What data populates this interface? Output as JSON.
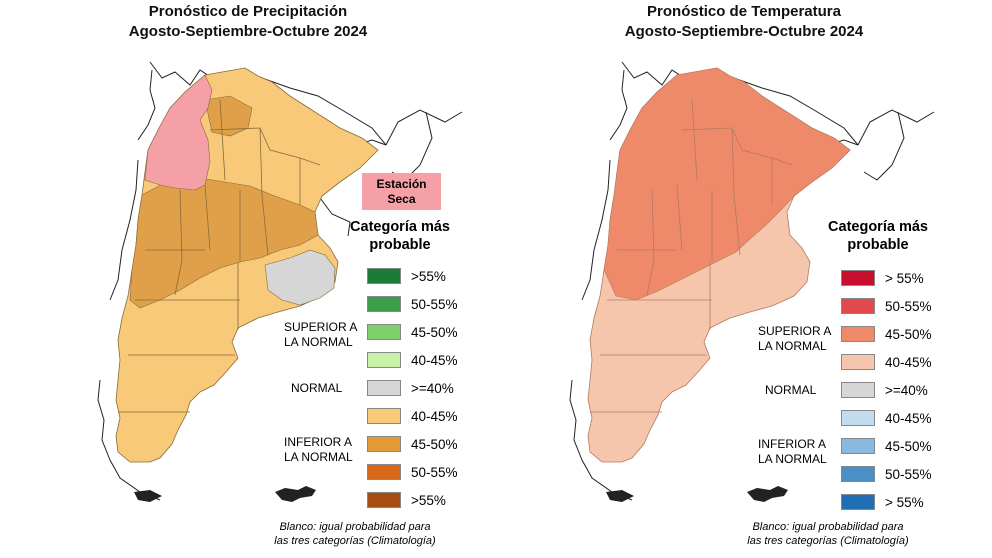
{
  "left_panel": {
    "title_line1": "Pronóstico de Precipitación",
    "title_line2": "Agosto-Septiembre-Octubre 2024",
    "dry_station_line1": "Estación",
    "dry_station_line2": "Seca",
    "category_title_line1": "Categoría más",
    "category_title_line2": "probable",
    "legend": [
      {
        "label": ">55%",
        "color": "#1b7a35"
      },
      {
        "label": "50-55%",
        "color": "#3d9e4a"
      },
      {
        "label": "45-50%",
        "color": "#7fd06a"
      },
      {
        "label": "40-45%",
        "color": "#c9f0a8"
      },
      {
        "label": ">=40%",
        "color": "#d6d6d6"
      },
      {
        "label": "40-45%",
        "color": "#f7c978"
      },
      {
        "label": "45-50%",
        "color": "#e39a36"
      },
      {
        "label": "50-55%",
        "color": "#d8661b"
      },
      {
        "label": ">55%",
        "color": "#a84e14"
      }
    ],
    "group_superior_line1": "SUPERIOR A",
    "group_superior_line2": "LA NORMAL",
    "group_normal": "NORMAL",
    "group_inferior_line1": "INFERIOR A",
    "group_inferior_line2": "LA NORMAL",
    "footnote_line1": "Blanco: igual probabilidad para",
    "footnote_line2": "las tres categorías (Climatología)",
    "map_colors": {
      "dry": "#f4a0a6",
      "light": "#f7c978",
      "medium": "#e0a04a",
      "normal": "#d6d6d6"
    }
  },
  "right_panel": {
    "title_line1": "Pronóstico de Temperatura",
    "title_line2": "Agosto-Septiembre-Octubre 2024",
    "category_title_line1": "Categoría más",
    "category_title_line2": "probable",
    "legend": [
      {
        "label": "> 55%",
        "color": "#c8102e"
      },
      {
        "label": "50-55%",
        "color": "#e04a4a"
      },
      {
        "label": "45-50%",
        "color": "#ee8a6a"
      },
      {
        "label": "40-45%",
        "color": "#f5c6ac"
      },
      {
        "label": ">=40%",
        "color": "#d6d6d6"
      },
      {
        "label": "40-45%",
        "color": "#c2dcee"
      },
      {
        "label": "45-50%",
        "color": "#8ab9df"
      },
      {
        "label": "50-55%",
        "color": "#4b8fc9"
      },
      {
        "label": "> 55%",
        "color": "#1f6fb4"
      }
    ],
    "group_superior_line1": "SUPERIOR A",
    "group_superior_line2": "LA NORMAL",
    "group_normal": "NORMAL",
    "group_inferior_line1": "INFERIOR A",
    "group_inferior_line2": "LA NORMAL",
    "footnote_line1": "Blanco: igual probabilidad para",
    "footnote_line2": "las tres categorías (Climatología)",
    "map_colors": {
      "strong": "#ee8a6a",
      "light": "#f5c6ac"
    }
  }
}
